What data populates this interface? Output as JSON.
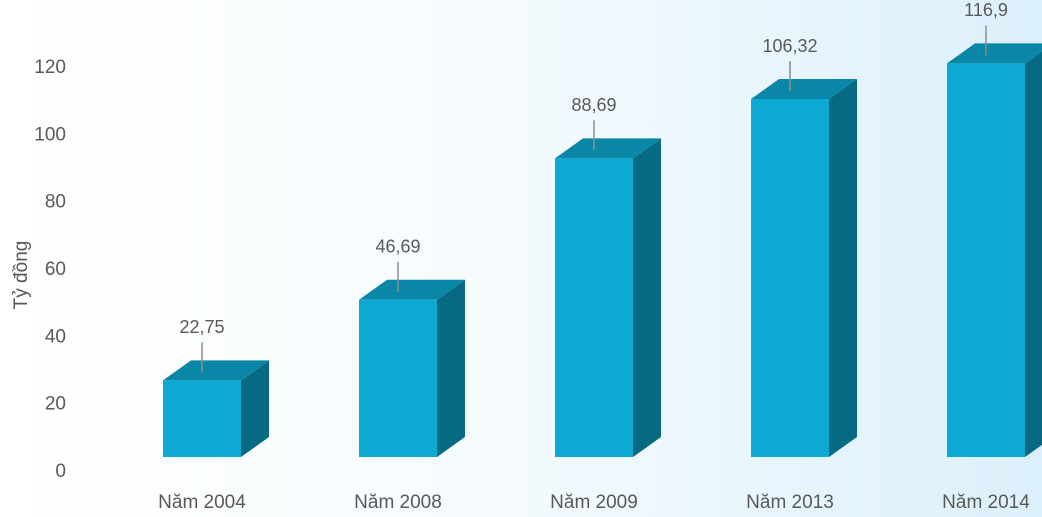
{
  "chart_data": {
    "type": "bar3d",
    "y_label": "Tỷ đồng",
    "categories": [
      "Năm 2004",
      "Năm 2008",
      "Năm 2009",
      "Năm 2013",
      "Năm 2014"
    ],
    "values": [
      22.75,
      46.69,
      88.69,
      106.32,
      116.9
    ],
    "value_labels": [
      "22,75",
      "46,69",
      "88,69",
      "106,32",
      "116,9"
    ],
    "color": "#0ea9d2",
    "ylim": [
      0,
      120
    ],
    "yticks": [
      0,
      20,
      40,
      60,
      80,
      100,
      120
    ],
    "grid": false
  }
}
